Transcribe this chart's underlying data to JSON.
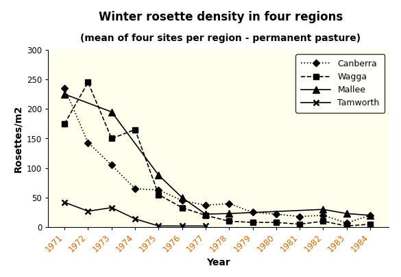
{
  "title": "Winter rosette density in four regions",
  "subtitle": "(mean of four sites per region - permanent pasture)",
  "xlabel": "Year",
  "ylabel": "Rosettes/m2",
  "ylim": [
    0,
    300
  ],
  "yticks": [
    0,
    50,
    100,
    150,
    200,
    250,
    300
  ],
  "years": [
    1971,
    1972,
    1973,
    1974,
    1975,
    1976,
    1977,
    1978,
    1979,
    1980,
    1981,
    1982,
    1983,
    1984
  ],
  "canberra": [
    235,
    143,
    105,
    65,
    63,
    45,
    37,
    40,
    25,
    22,
    18,
    20,
    7,
    20
  ],
  "wagga": [
    175,
    245,
    150,
    165,
    55,
    33,
    20,
    10,
    8,
    8,
    5,
    10,
    2,
    5
  ],
  "mallee": [
    225,
    null,
    195,
    null,
    88,
    50,
    22,
    23,
    null,
    null,
    null,
    30,
    23,
    20
  ],
  "tamworth": [
    42,
    27,
    33,
    14,
    2,
    2,
    2,
    null,
    null,
    null,
    null,
    null,
    null,
    null
  ],
  "plot_bg": "#ffffee",
  "fig_bg": "#ffffff",
  "title_fontsize": 12,
  "subtitle_fontsize": 10,
  "label_fontsize": 10,
  "tick_fontsize": 8.5,
  "legend_fontsize": 9,
  "tick_color": "#cc6600"
}
